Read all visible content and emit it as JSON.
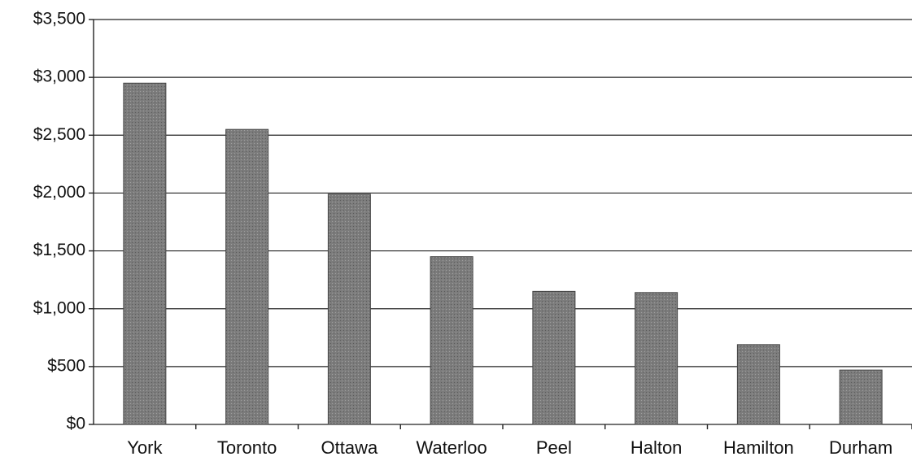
{
  "chart_data": {
    "type": "bar",
    "categories": [
      "York",
      "Toronto",
      "Ottawa",
      "Waterloo",
      "Peel",
      "Halton",
      "Hamilton",
      "Durham"
    ],
    "values": [
      2950,
      2550,
      1990,
      1450,
      1150,
      1140,
      690,
      470
    ],
    "color": "#7c7c7c",
    "ylim": [
      0,
      3500
    ],
    "yticks": [
      {
        "value": 0,
        "label": "$0"
      },
      {
        "value": 500,
        "label": "$500"
      },
      {
        "value": 1000,
        "label": "$1,000"
      },
      {
        "value": 1500,
        "label": "$1,500"
      },
      {
        "value": 2000,
        "label": "$2,000"
      },
      {
        "value": 2500,
        "label": "$2,500"
      },
      {
        "value": 3000,
        "label": "$3,000"
      },
      {
        "value": 3500,
        "label": "$3,500"
      }
    ],
    "grid": true
  }
}
